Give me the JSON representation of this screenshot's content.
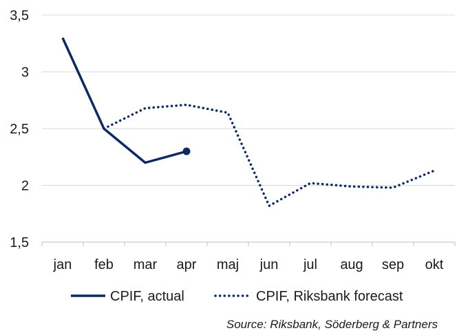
{
  "chart_data": {
    "type": "line",
    "categories": [
      "jan",
      "feb",
      "mar",
      "apr",
      "maj",
      "jun",
      "jul",
      "aug",
      "sep",
      "okt"
    ],
    "ylim": [
      1.5,
      3.5
    ],
    "yticks": [
      "1,5",
      "2",
      "2,5",
      "3",
      "3,5"
    ],
    "ytick_values": [
      1.5,
      2.0,
      2.5,
      3.0,
      3.5
    ],
    "grid": true,
    "legend_position": "bottom",
    "series": [
      {
        "name": "CPIF, actual",
        "style": "solid",
        "color": "#0a2a66",
        "values": [
          3.3,
          2.5,
          2.2,
          2.3,
          null,
          null,
          null,
          null,
          null,
          null
        ]
      },
      {
        "name": "CPIF, Riksbank forecast",
        "style": "dotted",
        "color": "#0a2a66",
        "values": [
          null,
          2.5,
          2.68,
          2.71,
          2.64,
          1.82,
          2.02,
          1.99,
          1.98,
          2.13
        ]
      }
    ],
    "source": "Source: Riksbank, Söderberg & Partners"
  }
}
